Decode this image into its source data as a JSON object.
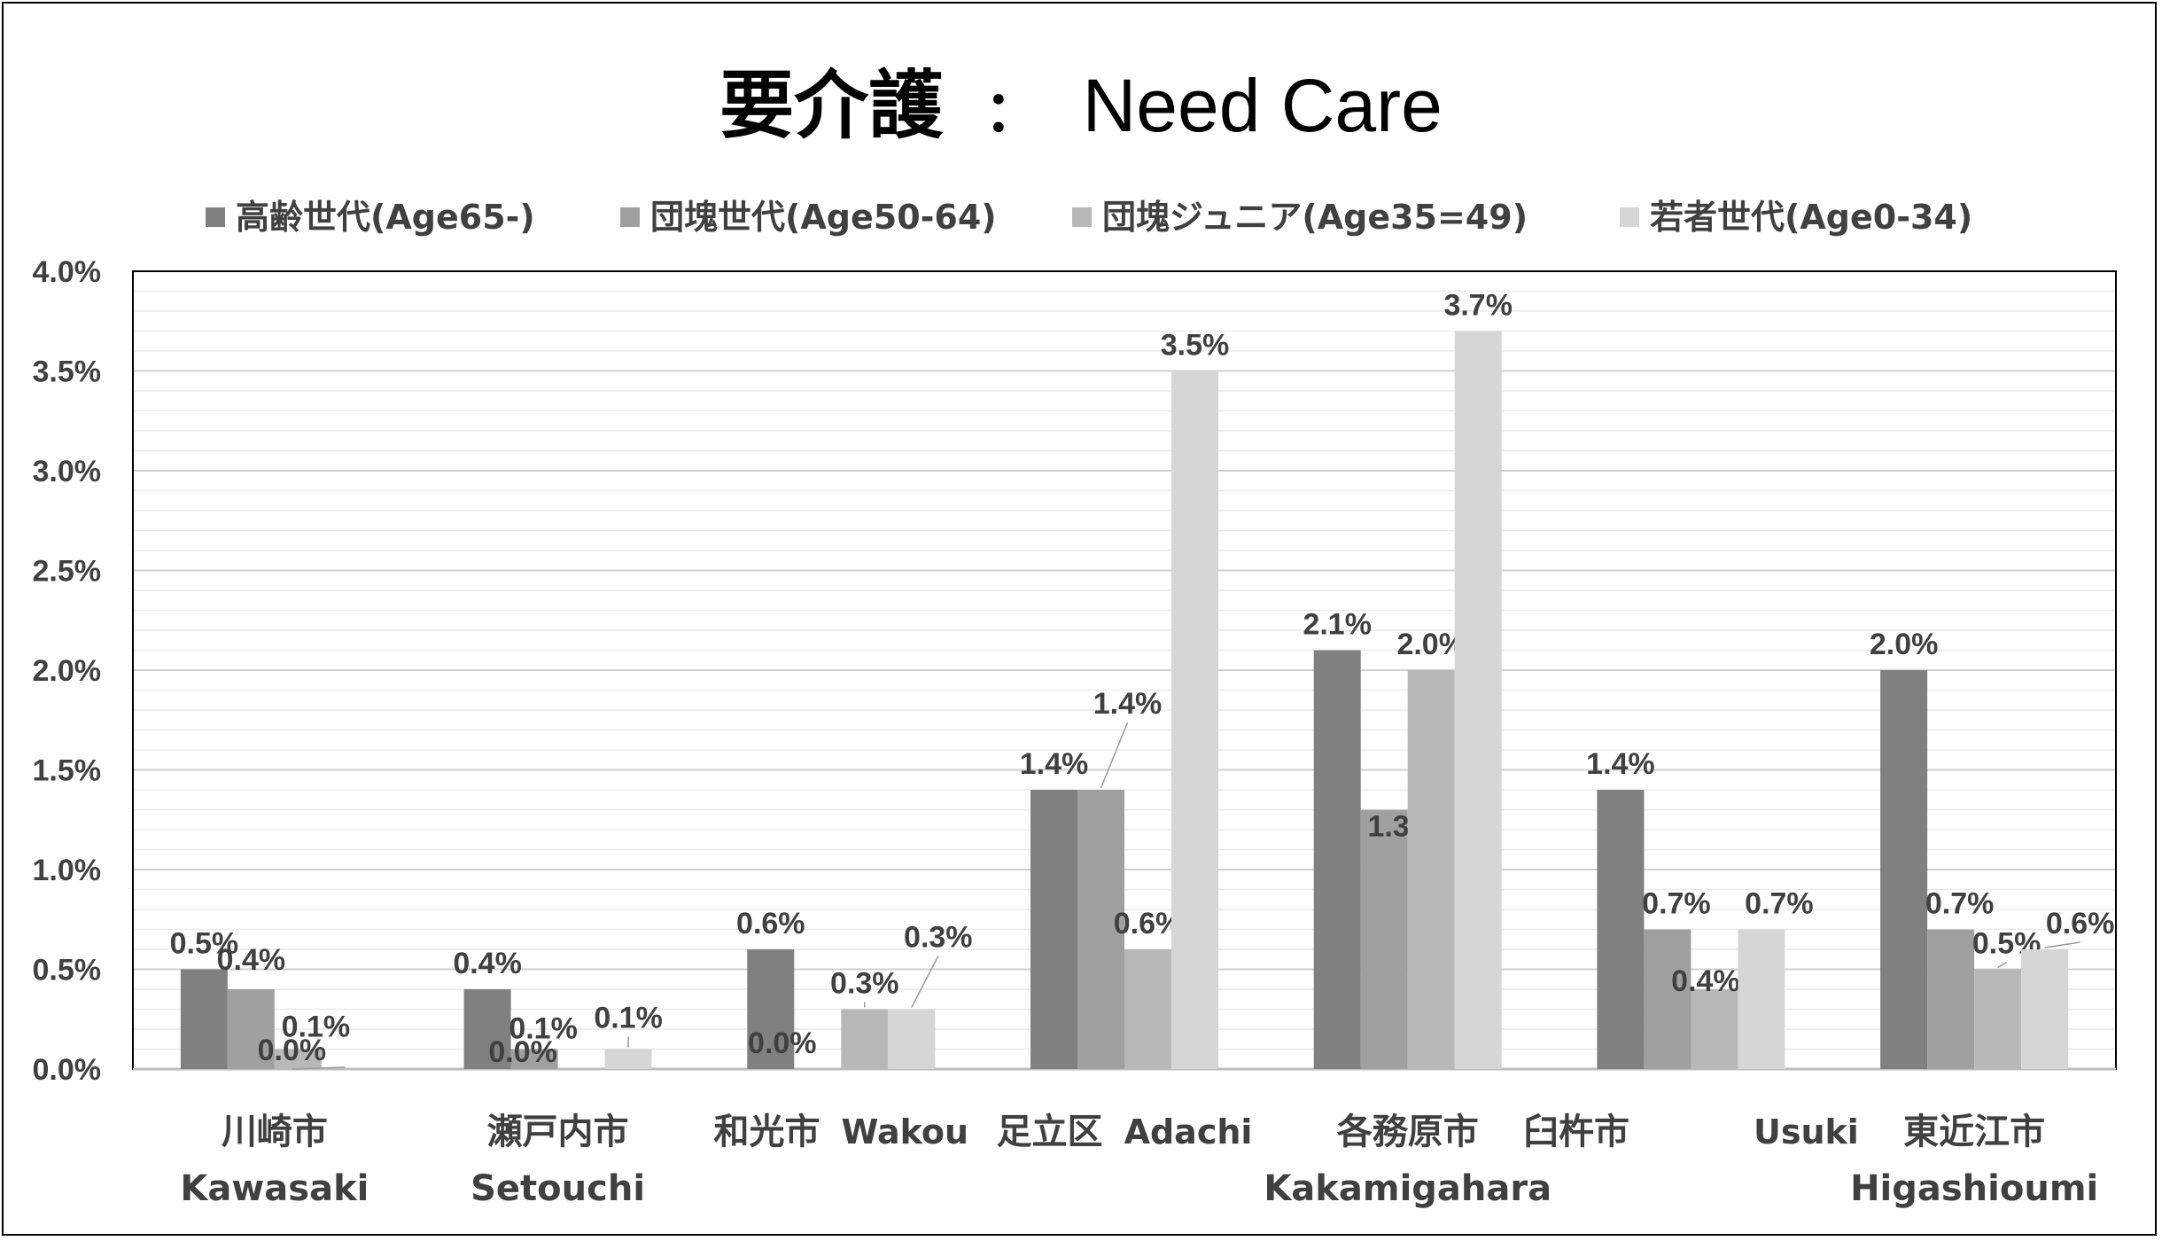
{
  "chart_data": {
    "type": "bar",
    "title": "要介護",
    "title_separator": "：",
    "title_en": "Need Care",
    "legend_position": "top",
    "ylim": [
      0,
      4.0
    ],
    "y_ticks": [
      "0.0%",
      "0.5%",
      "1.0%",
      "1.5%",
      "2.0%",
      "2.5%",
      "3.0%",
      "3.5%",
      "4.0%"
    ],
    "grid": true,
    "categories": [
      {
        "jp": "川崎市",
        "en": "Kawasaki"
      },
      {
        "jp": "瀬戸内市",
        "en": "Setouchi"
      },
      {
        "jp": "和光市",
        "en": "Wakou"
      },
      {
        "jp": "足立区",
        "en": "Adachi"
      },
      {
        "jp": "各務原市",
        "en": "Kakamigahara"
      },
      {
        "jp": "臼杵市",
        "en": "Usuki"
      },
      {
        "jp": "東近江市",
        "en": "Higashioumi"
      }
    ],
    "series": [
      {
        "name": "高齢世代(Age65-)",
        "color": "#808080",
        "values": [
          0.5,
          0.4,
          0.6,
          1.4,
          2.1,
          1.4,
          2.0
        ],
        "labels": [
          "0.5%",
          "0.4%",
          "0.6%",
          "1.4%",
          "2.1%",
          "1.4%",
          "2.0%"
        ]
      },
      {
        "name": "団塊世代(Age50-64)",
        "color": "#a0a0a0",
        "values": [
          0.4,
          0.1,
          0.0,
          1.4,
          1.3,
          0.7,
          0.7
        ],
        "labels": [
          "0.4%",
          "0.1%",
          "0.0%",
          "1.4%",
          "1.3%",
          "0.7%",
          "0.7%"
        ]
      },
      {
        "name": "団塊ジュニア(Age35=49)",
        "color": "#b8b8b8",
        "values": [
          0.1,
          0.0,
          0.3,
          0.6,
          2.0,
          0.4,
          0.5
        ],
        "labels": [
          "0.1%",
          "0.0%",
          "0.3%",
          "0.6%",
          "2.0%",
          "0.4%",
          "0.5%"
        ]
      },
      {
        "name": "若者世代(Age0-34)",
        "color": "#d6d6d6",
        "values": [
          0.0,
          0.1,
          0.3,
          3.5,
          3.7,
          0.7,
          0.6
        ],
        "labels": [
          "0.0%",
          "0.1%",
          "0.3%",
          "3.5%",
          "3.7%",
          "0.7%",
          "0.6%"
        ]
      }
    ]
  }
}
